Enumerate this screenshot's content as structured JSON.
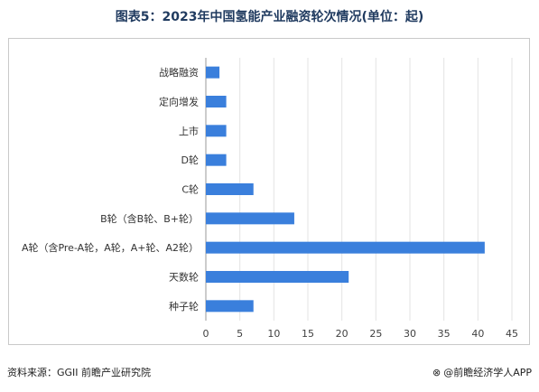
{
  "chart_data": {
    "type": "bar",
    "orientation": "horizontal",
    "title": "图表5：2023年中国氢能产业融资轮次情况(单位：起)",
    "categories": [
      "战略融资",
      "定向增发",
      "上市",
      "D轮",
      "C轮",
      "B轮（含B轮、B+轮）",
      "A轮（含Pre-A轮，A轮，A+轮、A2轮）",
      "天数轮",
      "种子轮"
    ],
    "values": [
      2,
      3,
      3,
      3,
      7,
      13,
      41,
      21,
      7
    ],
    "xlim": [
      0,
      45
    ],
    "xticks": [
      0,
      5,
      10,
      15,
      20,
      25,
      30,
      35,
      40,
      45
    ],
    "xlabel": "",
    "ylabel": "",
    "grid": true,
    "bar_color": "#3a7fdc"
  },
  "footer": {
    "source": "资料来源：GGII 前瞻产业研究院",
    "brand": "@前瞻经济学人APP",
    "brand_icon": "qianzhan-logo-icon"
  }
}
